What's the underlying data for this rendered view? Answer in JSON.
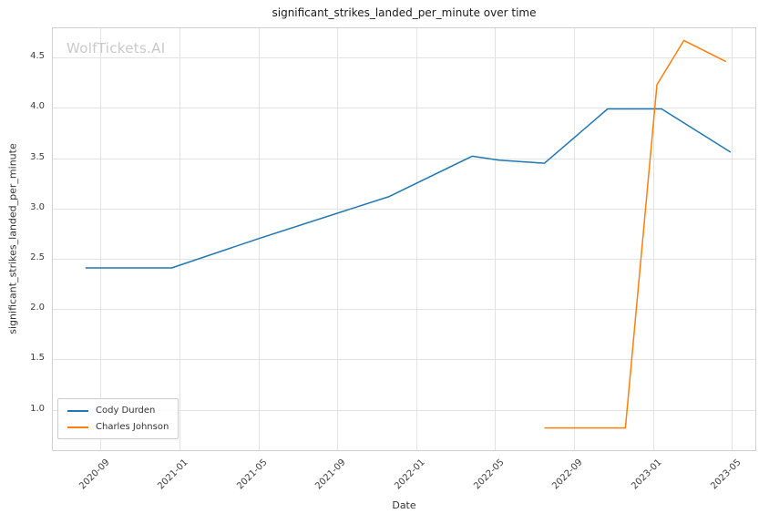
{
  "figure": {
    "title": "significant_strikes_landed_per_minute over time",
    "watermark": "WolfTickets.AI",
    "xlabel": "Date",
    "ylabel": "significant_strikes_landed_per_minute"
  },
  "chart_data": {
    "type": "line",
    "title": "significant_strikes_landed_per_minute over time",
    "xlabel": "Date",
    "ylabel": "significant_strikes_landed_per_minute",
    "x_tick_labels": [
      "2020-09",
      "2021-01",
      "2021-05",
      "2021-09",
      "2022-01",
      "2022-05",
      "2022-09",
      "2023-01",
      "2023-05"
    ],
    "y_tick_labels": [
      "1.0",
      "1.5",
      "2.0",
      "2.5",
      "3.0",
      "3.5",
      "4.0",
      "4.5"
    ],
    "xlim": [
      "2020-06-17",
      "2023-06-08"
    ],
    "ylim": [
      0.59,
      4.8
    ],
    "grid": true,
    "grid_color": "#e3e3e3",
    "spine_color": "#d0d0d0",
    "legend_position": "lower left",
    "watermark": "WolfTickets.AI",
    "series": [
      {
        "name": "Cody Durden",
        "color": "#1f77b4",
        "x": [
          "2020-08-08",
          "2020-12-19",
          "2021-05-01",
          "2021-11-20",
          "2022-03-26",
          "2022-05-07",
          "2022-07-16",
          "2022-10-22",
          "2023-01-14",
          "2023-04-29"
        ],
        "y": [
          2.41,
          2.41,
          2.7,
          3.12,
          3.52,
          3.48,
          3.45,
          3.99,
          3.99,
          3.56
        ]
      },
      {
        "name": "Charles Johnson",
        "color": "#ff7f0e",
        "x": [
          "2022-07-16",
          "2022-11-19",
          "2023-01-07",
          "2023-02-18",
          "2023-04-22"
        ],
        "y": [
          0.82,
          0.82,
          4.23,
          4.67,
          4.46
        ]
      }
    ]
  }
}
